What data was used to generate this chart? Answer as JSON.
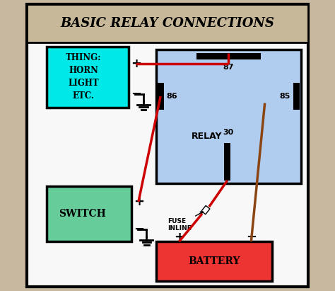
{
  "title": "BASIC RELAY CONNECTIONS",
  "bg_outer": "#c8b8a0",
  "bg_inner": "#f8f8f8",
  "title_bg": "#c8b89a",
  "thing_box_color": "#00e8e8",
  "switch_box_color": "#66cc99",
  "relay_box_color": "#b0ccee",
  "battery_box_color": "#ee3333",
  "thing_text": "THING:\nHORN\nLIGHT\nETC.",
  "switch_text": "SWITCH",
  "relay_text": "RELAY",
  "battery_text": "BATTERY",
  "fuse_label": "FUSE\nINLINE",
  "wire_color_red": "#cc0000",
  "wire_color_brown": "#8B4513",
  "wire_color_black": "#111111"
}
